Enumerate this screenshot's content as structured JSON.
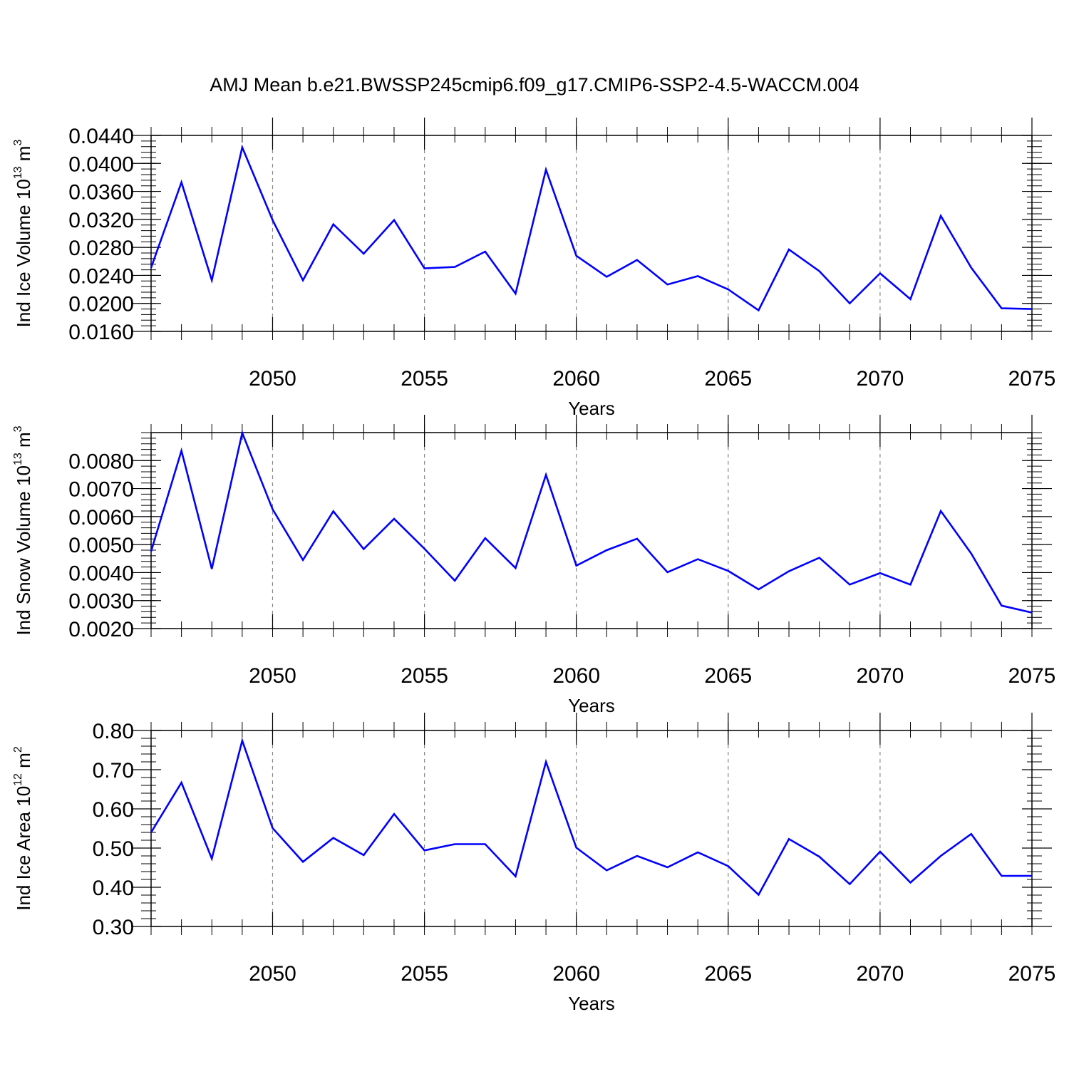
{
  "title": "AMJ Mean b.e21.BWSSP245cmip6.f09_g17.CMIP6-SSP2-4.5-WACCM.004",
  "colors": {
    "line": "#0000ff",
    "axis": "#000000",
    "gridline": "#888888"
  },
  "chart_data": [
    {
      "type": "line",
      "xlabel": "Years",
      "ylabel": {
        "text": "Ind Ice Volume 10",
        "sup": "13",
        "unit": " m",
        "unit_sup": "3"
      },
      "xlim": [
        2046,
        2075
      ],
      "ylim": [
        0.016,
        0.044
      ],
      "xticks": [
        2050,
        2055,
        2060,
        2065,
        2070,
        2075
      ],
      "yticks": [
        "0.0160",
        "0.0200",
        "0.0240",
        "0.0280",
        "0.0320",
        "0.0360",
        "0.0400",
        "0.0440"
      ],
      "vertical_gridlines": "dashed at major x ticks",
      "x": [
        2046,
        2047,
        2048,
        2049,
        2050,
        2051,
        2052,
        2053,
        2054,
        2055,
        2056,
        2057,
        2058,
        2059,
        2060,
        2061,
        2062,
        2063,
        2064,
        2065,
        2066,
        2067,
        2068,
        2069,
        2070,
        2071,
        2072,
        2073,
        2074,
        2075
      ],
      "y": [
        0.0251,
        0.0373,
        0.0233,
        0.0423,
        0.0319,
        0.0233,
        0.0313,
        0.0271,
        0.0319,
        0.025,
        0.0252,
        0.0274,
        0.0214,
        0.0391,
        0.0268,
        0.0238,
        0.0262,
        0.0227,
        0.0239,
        0.022,
        0.019,
        0.0277,
        0.0246,
        0.02,
        0.0243,
        0.0206,
        0.0325,
        0.0251,
        0.0193,
        0.0192
      ]
    },
    {
      "type": "line",
      "xlabel": "Years",
      "ylabel": {
        "text": "Ind Snow Volume 10",
        "sup": "13",
        "unit": " m",
        "unit_sup": "3"
      },
      "xlim": [
        2046,
        2075
      ],
      "ylim": [
        0.002,
        0.009
      ],
      "xticks": [
        2050,
        2055,
        2060,
        2065,
        2070,
        2075
      ],
      "yticks": [
        "0.0020",
        "0.0030",
        "0.0040",
        "0.0050",
        "0.0060",
        "0.0070",
        "0.0080"
      ],
      "vertical_gridlines": "dashed at major x ticks",
      "x": [
        2046,
        2047,
        2048,
        2049,
        2050,
        2051,
        2052,
        2053,
        2054,
        2055,
        2056,
        2057,
        2058,
        2059,
        2060,
        2061,
        2062,
        2063,
        2064,
        2065,
        2066,
        2067,
        2068,
        2069,
        2070,
        2071,
        2072,
        2073,
        2074,
        2075
      ],
      "y": [
        0.00476,
        0.00835,
        0.00413,
        0.00899,
        0.00626,
        0.00445,
        0.00619,
        0.00484,
        0.00592,
        0.00485,
        0.00371,
        0.00523,
        0.00416,
        0.00749,
        0.00425,
        0.0048,
        0.00521,
        0.00401,
        0.00448,
        0.00406,
        0.0034,
        0.00405,
        0.00453,
        0.00357,
        0.00398,
        0.00357,
        0.0062,
        0.00468,
        0.00282,
        0.00257
      ]
    },
    {
      "type": "line",
      "xlabel": "Years",
      "ylabel": {
        "text": "Ind Ice Area 10",
        "sup": "12",
        "unit": " m",
        "unit_sup": "2"
      },
      "xlim": [
        2046,
        2075
      ],
      "ylim": [
        0.3,
        0.8
      ],
      "xticks": [
        2050,
        2055,
        2060,
        2065,
        2070,
        2075
      ],
      "yticks": [
        "0.30",
        "0.40",
        "0.50",
        "0.60",
        "0.70",
        "0.80"
      ],
      "vertical_gridlines": "dashed at major x ticks",
      "x": [
        2046,
        2047,
        2048,
        2049,
        2050,
        2051,
        2052,
        2053,
        2054,
        2055,
        2056,
        2057,
        2058,
        2059,
        2060,
        2061,
        2062,
        2063,
        2064,
        2065,
        2066,
        2067,
        2068,
        2069,
        2070,
        2071,
        2072,
        2073,
        2074,
        2075
      ],
      "y": [
        0.54,
        0.667,
        0.473,
        0.774,
        0.551,
        0.465,
        0.526,
        0.482,
        0.587,
        0.494,
        0.51,
        0.51,
        0.428,
        0.72,
        0.501,
        0.443,
        0.48,
        0.451,
        0.489,
        0.454,
        0.381,
        0.523,
        0.478,
        0.408,
        0.491,
        0.412,
        0.48,
        0.536,
        0.429,
        0.429
      ]
    }
  ]
}
